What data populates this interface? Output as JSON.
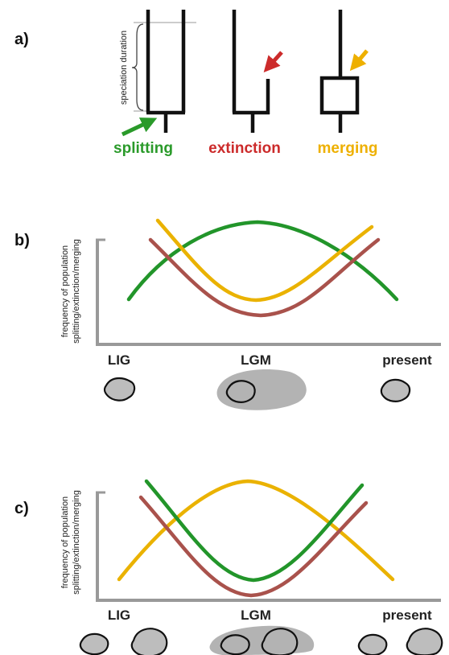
{
  "panel_a": {
    "letter": "a)",
    "duration_label": "speciation duration",
    "events": [
      {
        "label": "splitting",
        "color": "#2a9a2a"
      },
      {
        "label": "extinction",
        "color": "#cc2b2b"
      },
      {
        "label": "merging",
        "color": "#eeb000"
      }
    ]
  },
  "panel_b": {
    "letter": "b)",
    "ylabel_line1": "frequency of population",
    "ylabel_line2": "splitting/extinction/merging",
    "ticks": [
      "LIG",
      "LGM",
      "present"
    ]
  },
  "panel_c": {
    "letter": "c)",
    "ylabel_line1": "frequency of population",
    "ylabel_line2": "splitting/extinction/merging",
    "ticks": [
      "LIG",
      "LGM",
      "present"
    ]
  },
  "colors": {
    "splitting": "#22952a",
    "extinction": "#a9524c",
    "merging": "#eab200",
    "axis": "#999999",
    "glacier": "#b3b3b3"
  },
  "icons": [
    "tree-topology-icon",
    "arrow-icon",
    "island-outline-icon",
    "glacier-icon"
  ]
}
